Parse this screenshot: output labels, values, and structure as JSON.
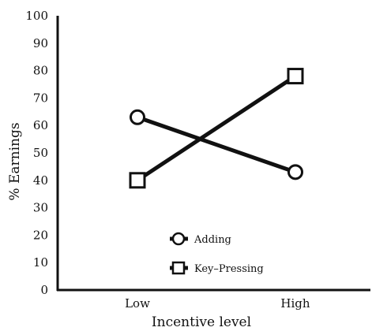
{
  "chart_data": {
    "type": "line",
    "title": "",
    "xlabel": "Incentive level",
    "ylabel": "% Earnings",
    "categories": [
      "Low",
      "High"
    ],
    "ylim": [
      0,
      100
    ],
    "yticks": [
      0,
      10,
      20,
      30,
      40,
      50,
      60,
      70,
      80,
      90,
      100
    ],
    "grid": false,
    "legend_position": "bottom-center",
    "series": [
      {
        "name": "Adding",
        "marker": "circle",
        "values": [
          63,
          43
        ]
      },
      {
        "name": "Key–Pressing",
        "marker": "square",
        "values": [
          40,
          78
        ]
      }
    ],
    "colors": {
      "line": "#111111",
      "background": "#ffffff"
    }
  }
}
